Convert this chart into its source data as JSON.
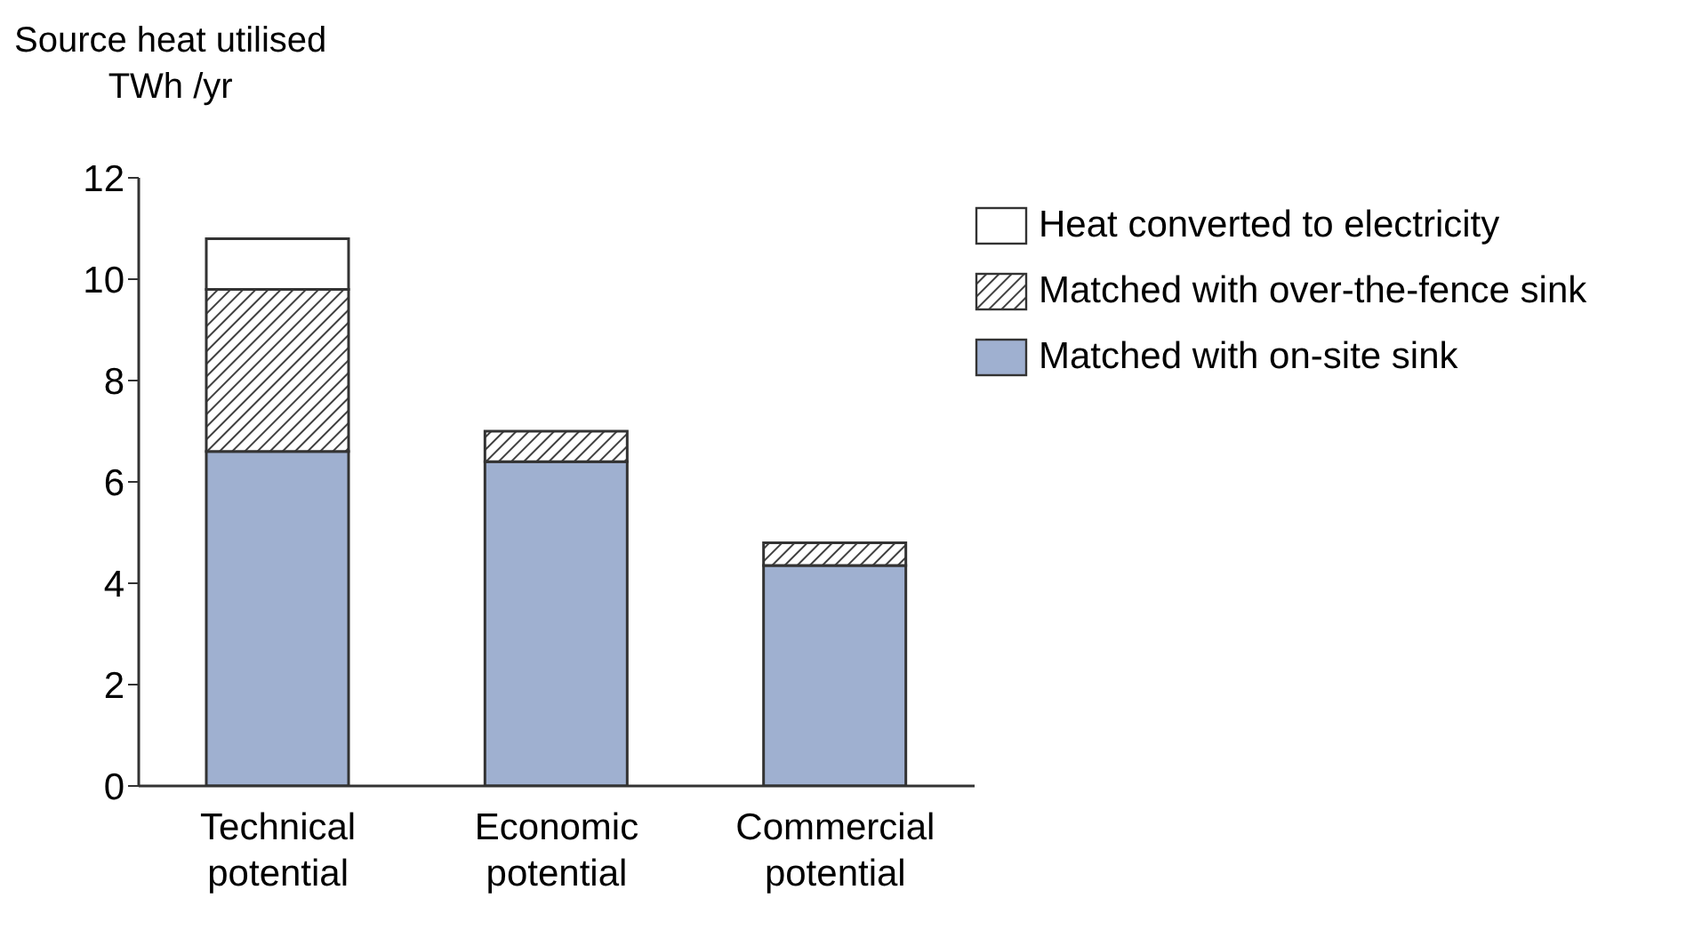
{
  "chart_data": {
    "type": "bar",
    "ylabel": "Source heat utilised\nTWh /yr",
    "categories": [
      "Technical potential",
      "Economic potential",
      "Commercial potential"
    ],
    "stacked": true,
    "series": [
      {
        "name": "Matched with on-site sink",
        "color": "#9fb0d0",
        "values": [
          6.6,
          6.4,
          4.35
        ]
      },
      {
        "name": "Matched with over-the-fence sink",
        "color": "#404040",
        "values": [
          3.2,
          0.6,
          0.45
        ]
      },
      {
        "name": "Heat converted to electricity",
        "color": "#ffffff",
        "values": [
          1.0,
          null,
          null
        ]
      }
    ],
    "ylim": [
      0,
      12
    ],
    "yticks": [
      0,
      2,
      4,
      6,
      8,
      10,
      12
    ],
    "grid": false,
    "legend": "top right"
  }
}
